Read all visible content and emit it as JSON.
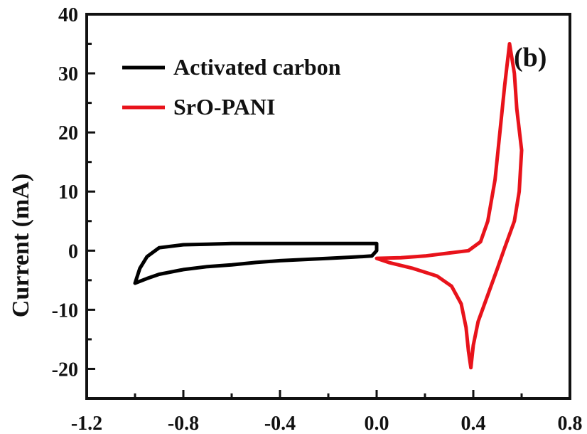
{
  "chart_data": {
    "type": "line",
    "title": "",
    "xlabel": "",
    "ylabel": "Current (mA)",
    "xlim": [
      -1.2,
      0.8
    ],
    "ylim": [
      -25,
      40
    ],
    "x_ticks": [
      -1.2,
      -0.8,
      -0.4,
      0.0,
      0.4,
      0.8
    ],
    "x_tick_labels": [
      "-1.2",
      "-0.8",
      "-0.4",
      "0.0",
      "0.4",
      "0.8"
    ],
    "y_ticks": [
      -20,
      -10,
      0,
      10,
      20,
      30,
      40
    ],
    "y_tick_labels": [
      "-20",
      "-10",
      "0",
      "10",
      "20",
      "30",
      "40"
    ],
    "annotation": "(b)",
    "legend_position": "top-left",
    "grid": false,
    "series": [
      {
        "name": "Activated carbon",
        "color": "#000000",
        "points": [
          [
            0.0,
            1.2
          ],
          [
            -0.1,
            1.2
          ],
          [
            -0.2,
            1.2
          ],
          [
            -0.3,
            1.2
          ],
          [
            -0.4,
            1.2
          ],
          [
            -0.5,
            1.2
          ],
          [
            -0.6,
            1.2
          ],
          [
            -0.7,
            1.1
          ],
          [
            -0.8,
            1.0
          ],
          [
            -0.9,
            0.5
          ],
          [
            -0.95,
            -1.0
          ],
          [
            -0.98,
            -3.0
          ],
          [
            -1.0,
            -5.5
          ],
          [
            -0.95,
            -4.7
          ],
          [
            -0.9,
            -4.0
          ],
          [
            -0.8,
            -3.2
          ],
          [
            -0.7,
            -2.7
          ],
          [
            -0.6,
            -2.4
          ],
          [
            -0.5,
            -2.0
          ],
          [
            -0.4,
            -1.7
          ],
          [
            -0.3,
            -1.5
          ],
          [
            -0.2,
            -1.3
          ],
          [
            -0.1,
            -1.1
          ],
          [
            -0.02,
            -0.9
          ],
          [
            0.0,
            0.0
          ],
          [
            0.0,
            1.2
          ]
        ]
      },
      {
        "name": "SrO-PANI",
        "color": "#e8131b",
        "points": [
          [
            0.0,
            -1.3
          ],
          [
            0.1,
            -1.2
          ],
          [
            0.2,
            -0.9
          ],
          [
            0.3,
            -0.4
          ],
          [
            0.38,
            0.0
          ],
          [
            0.43,
            1.5
          ],
          [
            0.46,
            5.0
          ],
          [
            0.49,
            12.0
          ],
          [
            0.51,
            20.0
          ],
          [
            0.53,
            28.0
          ],
          [
            0.55,
            35.0
          ],
          [
            0.57,
            30.0
          ],
          [
            0.58,
            24.0
          ],
          [
            0.6,
            17.0
          ],
          [
            0.59,
            10.0
          ],
          [
            0.57,
            5.0
          ],
          [
            0.53,
            0.5
          ],
          [
            0.5,
            -3.0
          ],
          [
            0.46,
            -7.5
          ],
          [
            0.42,
            -12.0
          ],
          [
            0.4,
            -16.0
          ],
          [
            0.39,
            -19.8
          ],
          [
            0.38,
            -17.0
          ],
          [
            0.37,
            -13.0
          ],
          [
            0.35,
            -9.0
          ],
          [
            0.31,
            -6.0
          ],
          [
            0.25,
            -4.3
          ],
          [
            0.15,
            -3.0
          ],
          [
            0.05,
            -2.0
          ],
          [
            0.0,
            -1.3
          ]
        ]
      }
    ]
  }
}
